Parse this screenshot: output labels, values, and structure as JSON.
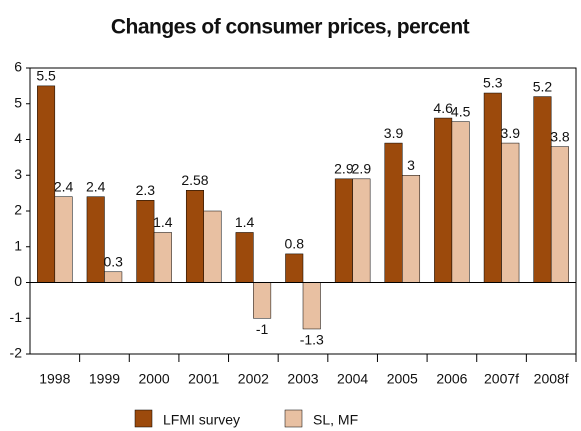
{
  "chart_data": {
    "type": "bar",
    "title": "Changes of consumer prices, percent",
    "categories": [
      "1998",
      "1999",
      "2000",
      "2001",
      "2002",
      "2003",
      "2004",
      "2005",
      "2006",
      "2007f",
      "2008f"
    ],
    "series": [
      {
        "name": "LFMI survey",
        "color": "#9c4a0c",
        "values": [
          5.5,
          2.4,
          2.3,
          2.58,
          1.4,
          0.8,
          2.9,
          3.9,
          4.6,
          5.3,
          5.2
        ],
        "value_labels": [
          "5.5",
          "2.4",
          "2.3",
          "2.58",
          "1.4",
          "0.8",
          "2.9",
          "3.9",
          "4.6",
          "5.3",
          "5.2"
        ]
      },
      {
        "name": "SL, MF",
        "color": "#e8c0a2",
        "values": [
          2.4,
          0.3,
          1.4,
          2,
          -1,
          -1.3,
          2.9,
          3,
          4.5,
          3.9,
          3.8
        ],
        "value_labels": [
          "2.4",
          "0.3",
          "1.4",
          null,
          "-1",
          "-1.3",
          "2.9",
          "3",
          "4.5",
          "3.9",
          "3.8"
        ]
      }
    ],
    "ylim": [
      -2,
      6
    ],
    "yticks": [
      -2,
      -1,
      0,
      1,
      2,
      3,
      4,
      5,
      6
    ],
    "grid": false
  }
}
